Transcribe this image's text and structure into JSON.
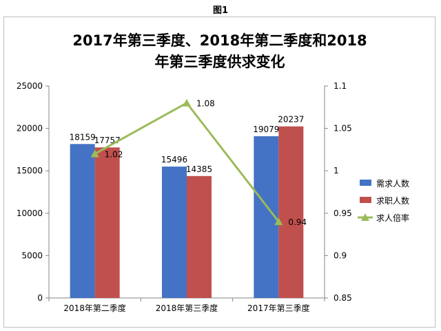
{
  "figure_label": "图1",
  "chart_data": {
    "type": "bar",
    "title_line1": "2017年第三季度、2018年第二季度和2018",
    "title_line2": "年第三季度供求变化",
    "categories": [
      "2018年第二季度",
      "2018年第三季度",
      "2017年第三季度"
    ],
    "series": [
      {
        "name": "需求人数",
        "type": "bar",
        "axis": "left",
        "color": "#4472c4",
        "values": [
          18159,
          15496,
          19079
        ]
      },
      {
        "name": "求职人数",
        "type": "bar",
        "axis": "left",
        "color": "#c0504d",
        "values": [
          17757,
          14385,
          20237
        ]
      },
      {
        "name": "求人倍率",
        "type": "line",
        "axis": "right",
        "color": "#9bbb59",
        "marker": "triangle",
        "values": [
          1.02,
          1.08,
          0.94
        ]
      }
    ],
    "y_left": {
      "min": 0,
      "max": 25000,
      "ticks": [
        0,
        5000,
        10000,
        15000,
        20000,
        25000
      ]
    },
    "y_right": {
      "min": 0.85,
      "max": 1.1,
      "ticks": [
        "0.85",
        "0.9",
        "0.95",
        "1",
        "1.05",
        "1.1"
      ]
    },
    "legend_position": "right",
    "grid": false
  }
}
